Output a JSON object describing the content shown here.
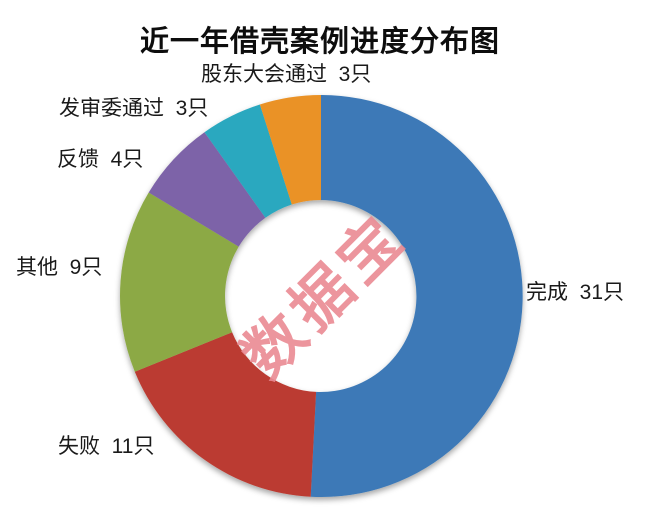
{
  "title": "近一年借壳案例进度分布图",
  "watermark": {
    "text": "数据宝",
    "color": "#ea8a93"
  },
  "chart_data": {
    "type": "pie",
    "subtype": "donut",
    "title": "近一年借壳案例进度分布图",
    "unit": "只",
    "total": 61,
    "start_angle_deg": 0,
    "direction": "clockwise",
    "inner_radius_ratio": 0.48,
    "legend_position": "none",
    "grid": false,
    "categories": [
      "完成",
      "失败",
      "其他",
      "反馈",
      "发审委通过",
      "股东大会通过"
    ],
    "values": [
      31,
      11,
      9,
      4,
      3,
      3
    ],
    "slices": [
      {
        "name": "完成",
        "value": 31,
        "color": "#3c79b7",
        "label": "完成  31只"
      },
      {
        "name": "失败",
        "value": 11,
        "color": "#bb3b30",
        "label": "失败  11只"
      },
      {
        "name": "其他",
        "value": 9,
        "color": "#8ca945",
        "label": "其他  9只"
      },
      {
        "name": "反馈",
        "value": 4,
        "color": "#7d63a8",
        "label": "反馈  4只"
      },
      {
        "name": "发审委通过",
        "value": 3,
        "color": "#2ba8bf",
        "label": "发审委通过  3只"
      },
      {
        "name": "股东大会通过",
        "value": 3,
        "color": "#ea9227",
        "label": "股东大会通过  3只"
      }
    ]
  }
}
